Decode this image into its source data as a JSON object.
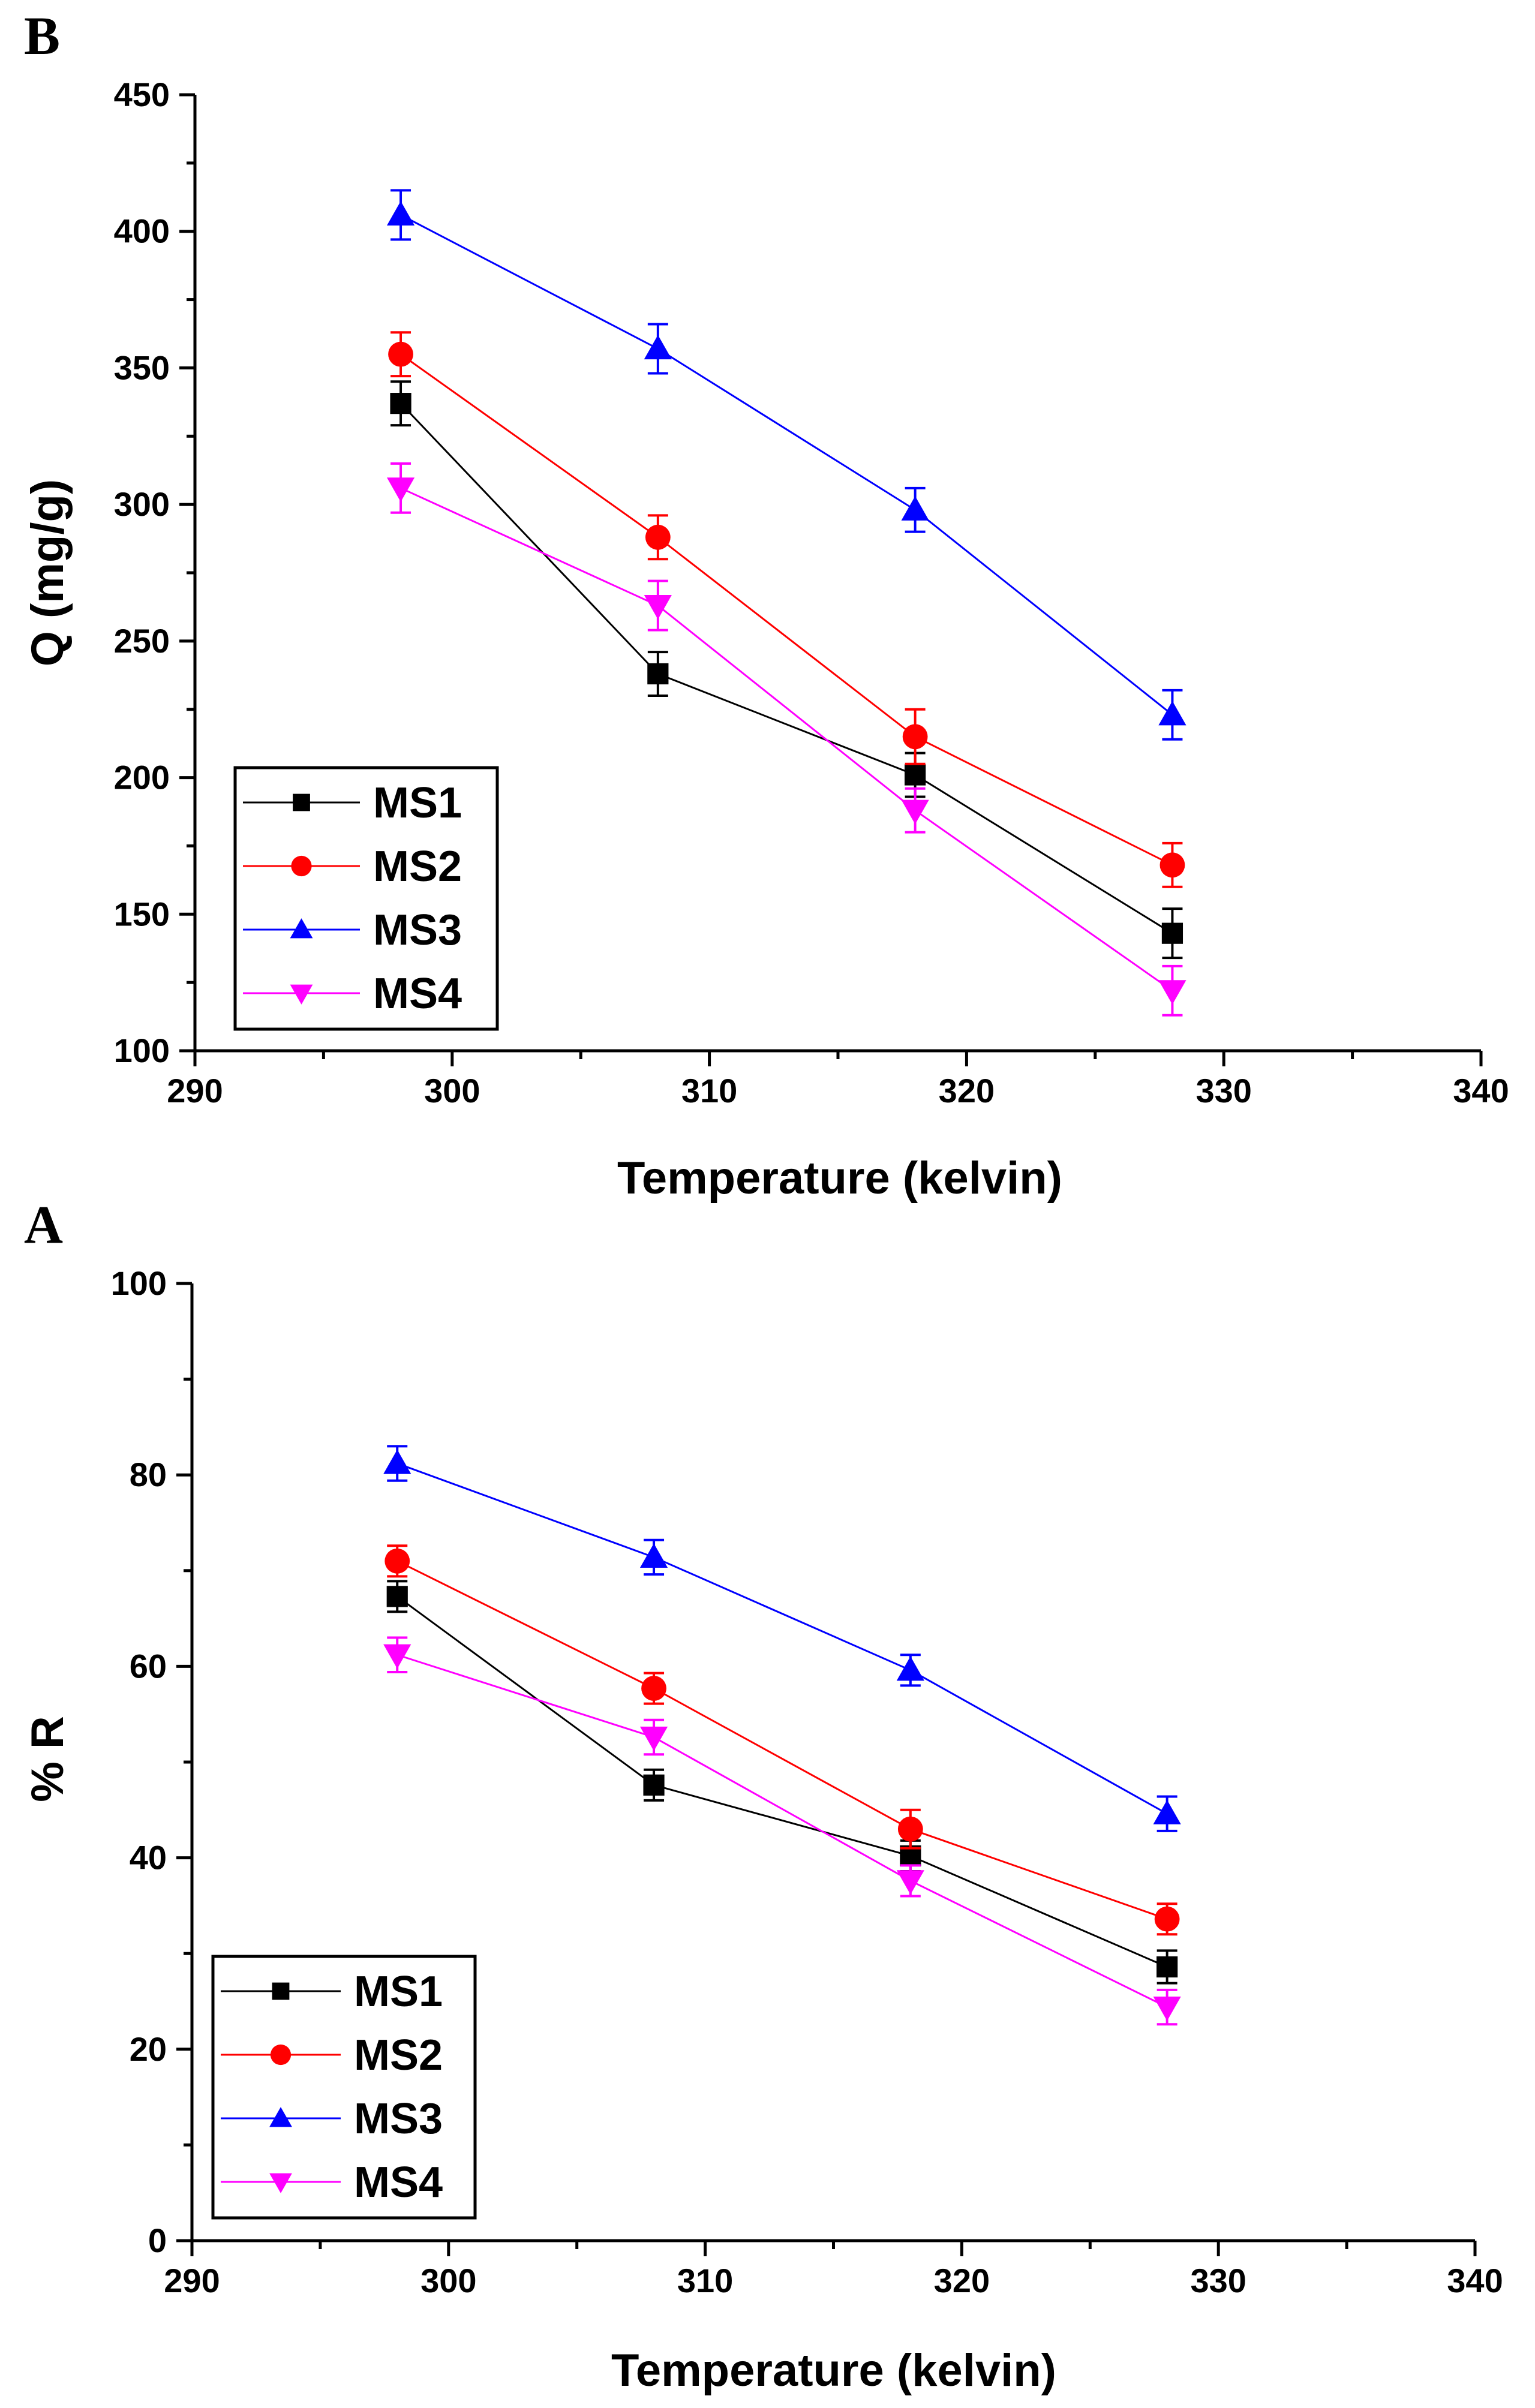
{
  "chart_data": [
    {
      "panel": "B",
      "type": "line",
      "xlabel": "Temperature (kelvin)",
      "ylabel": "Q (mg/g)",
      "xlim": [
        290,
        340
      ],
      "ylim": [
        100,
        450
      ],
      "xticks": [
        290,
        300,
        310,
        320,
        330,
        340
      ],
      "yticks": [
        100,
        150,
        200,
        250,
        300,
        350,
        400,
        450
      ],
      "x": [
        298,
        308,
        318,
        328
      ],
      "legend_position": "bottom-left",
      "grid": false,
      "series": [
        {
          "name": "MS1",
          "color": "#000000",
          "marker": "square",
          "values": [
            337,
            238,
            201,
            143
          ],
          "errors": [
            8,
            8,
            8,
            9
          ]
        },
        {
          "name": "MS2",
          "color": "#ff0000",
          "marker": "circle",
          "values": [
            355,
            288,
            215,
            168
          ],
          "errors": [
            8,
            8,
            10,
            8
          ]
        },
        {
          "name": "MS3",
          "color": "#0000ff",
          "marker": "triangle-up",
          "values": [
            406,
            357,
            298,
            223
          ],
          "errors": [
            9,
            9,
            8,
            9
          ]
        },
        {
          "name": "MS4",
          "color": "#ff00ff",
          "marker": "triangle-down",
          "values": [
            306,
            263,
            188,
            122
          ],
          "errors": [
            9,
            9,
            8,
            9
          ]
        }
      ]
    },
    {
      "panel": "A",
      "type": "line",
      "xlabel": "Temperature (kelvin)",
      "ylabel": "% R",
      "xlim": [
        290,
        340
      ],
      "ylim": [
        0,
        100
      ],
      "xticks": [
        290,
        300,
        310,
        320,
        330,
        340
      ],
      "yticks": [
        0,
        20,
        40,
        60,
        80,
        100
      ],
      "x": [
        298,
        308,
        318,
        328
      ],
      "legend_position": "bottom-left",
      "grid": false,
      "series": [
        {
          "name": "MS1",
          "color": "#000000",
          "marker": "square",
          "values": [
            67.3,
            47.6,
            40.2,
            28.6
          ],
          "errors": [
            1.6,
            1.6,
            1.6,
            1.7
          ]
        },
        {
          "name": "MS2",
          "color": "#ff0000",
          "marker": "circle",
          "values": [
            71,
            57.7,
            43,
            33.6
          ],
          "errors": [
            1.6,
            1.6,
            2,
            1.6
          ]
        },
        {
          "name": "MS3",
          "color": "#0000ff",
          "marker": "triangle-up",
          "values": [
            81.2,
            71.4,
            59.6,
            44.6
          ],
          "errors": [
            1.8,
            1.8,
            1.6,
            1.8
          ]
        },
        {
          "name": "MS4",
          "color": "#ff00ff",
          "marker": "triangle-down",
          "values": [
            61.2,
            52.6,
            37.6,
            24.4
          ],
          "errors": [
            1.8,
            1.8,
            1.6,
            1.8
          ]
        }
      ]
    }
  ]
}
